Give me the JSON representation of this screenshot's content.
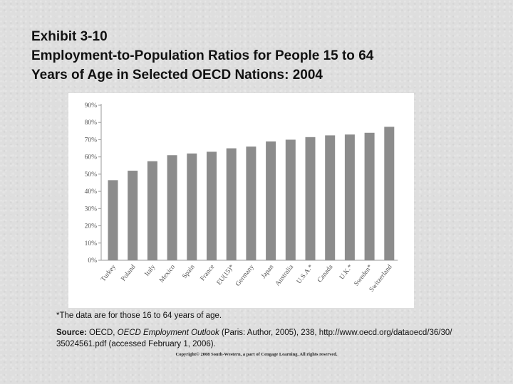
{
  "title": {
    "line1": "Exhibit 3-10",
    "line2": "Employment-to-Population Ratios for People 15 to 64",
    "line3": "Years of Age in Selected OECD Nations: 2004"
  },
  "chart_data": {
    "type": "bar",
    "categories": [
      "Turkey",
      "Poland",
      "Italy",
      "Mexico",
      "Spain",
      "France",
      "EU(15)*",
      "Germany",
      "Japan",
      "Australia",
      "U.S.A.*",
      "Canada",
      "U.K.*",
      "Sweden*",
      "Switzerland"
    ],
    "values": [
      46.5,
      52,
      57.5,
      61,
      62,
      63,
      65,
      66,
      69,
      70,
      71.5,
      72.5,
      73,
      74,
      77.5
    ],
    "ylim": [
      0,
      90
    ],
    "yticks": [
      0,
      10,
      20,
      30,
      40,
      50,
      60,
      70,
      80,
      90
    ],
    "ytick_labels": [
      "0%",
      "10%",
      "20%",
      "30%",
      "40%",
      "50%",
      "60%",
      "70%",
      "80%",
      "90%"
    ],
    "bar_color": "#8c8c8c",
    "axis_color": "#9a9a9a",
    "grid": false
  },
  "notes": {
    "footnote": "*The data are for those 16 to 64 years of age.",
    "source_label": "Source:",
    "source_pre": " OECD, ",
    "source_title": "OECD Employment Outlook",
    "source_post": " (Paris: Author, 2005), 238, http://www.oecd.org/dataoecd/36/30/ 35024561.pdf (accessed February 1, 2006).",
    "copyright": "Copyright© 2008 South-Western, a part of Cengage Learning. All rights reserved."
  }
}
